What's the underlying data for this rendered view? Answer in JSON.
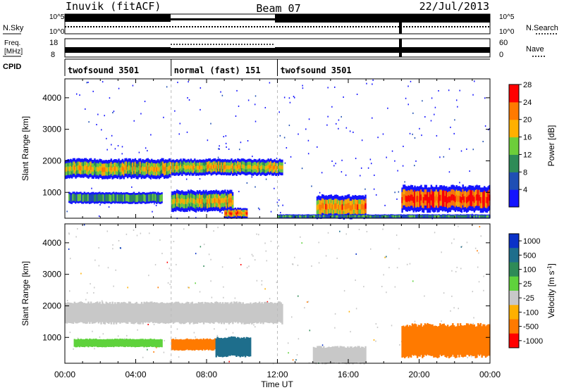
{
  "header": {
    "station": "Inuvik (fitACF)",
    "beam": "Beam 07",
    "date": "22/Jul/2013"
  },
  "summary": {
    "nsky_label": "N.Sky",
    "nsearch_label": "N.Search",
    "freq_label_1": "Freq.",
    "freq_label_2": "[MHz]",
    "nave_label": "Nave",
    "cpid_label": "CPID",
    "left_top_tick": "10^5",
    "left_bot_tick": "10^0",
    "right_top_tick": "10^5",
    "right_bot_tick": "10^0",
    "freq_top_tick": "18",
    "freq_bot_tick": "8",
    "nave_top_tick": "60",
    "nave_bot_tick": "0"
  },
  "cpid_segments": [
    {
      "label": "twofsound 3501",
      "start_hour": 0,
      "end_hour": 6
    },
    {
      "label": "normal (fast) 151",
      "start_hour": 6,
      "end_hour": 12
    },
    {
      "label": "twofsound 3501",
      "start_hour": 12,
      "end_hour": 24
    }
  ],
  "chart_data": [
    {
      "type": "heatmap",
      "parameter": "power",
      "xlabel": "",
      "ylabel": "Slant Range [km]",
      "xlim_hours": [
        0,
        24
      ],
      "ylim_km": [
        180,
        4600
      ],
      "yticks": [
        "1000",
        "2000",
        "3000",
        "4000"
      ],
      "colorbar_label": "Power [dB]",
      "colorbar_ticks": [
        "4",
        "8",
        "12",
        "16",
        "20",
        "24",
        "28"
      ],
      "colorbar_colors": [
        "#1414ff",
        "#1f4fb4",
        "#2e8b57",
        "#6dce3a",
        "#ffb000",
        "#ff7a00",
        "#ff0000"
      ],
      "bands": [
        {
          "start": 0.0,
          "end": 6.0,
          "min_km": 1450,
          "max_km": 2050,
          "level": 3
        },
        {
          "start": 6.0,
          "end": 12.3,
          "min_km": 1550,
          "max_km": 2050,
          "level": 3
        },
        {
          "start": 0.2,
          "end": 5.5,
          "min_km": 650,
          "max_km": 1000,
          "level": 2
        },
        {
          "start": 6.0,
          "end": 9.5,
          "min_km": 400,
          "max_km": 1050,
          "level": 3
        },
        {
          "start": 9.0,
          "end": 10.3,
          "min_km": 180,
          "max_km": 500,
          "level": 4
        },
        {
          "start": 14.2,
          "end": 17.0,
          "min_km": 180,
          "max_km": 900,
          "level": 4
        },
        {
          "start": 19.0,
          "end": 24.0,
          "min_km": 400,
          "max_km": 1200,
          "level": 5
        },
        {
          "start": 12.0,
          "end": 24.0,
          "min_km": 180,
          "max_km": 300,
          "level": 2
        }
      ]
    },
    {
      "type": "heatmap",
      "parameter": "velocity",
      "xlabel": "Time UT",
      "ylabel": "Slant Range [km]",
      "xlim_hours": [
        0,
        24
      ],
      "ylim_km": [
        180,
        4600
      ],
      "xticks": [
        "00:00",
        "04:00",
        "08:00",
        "12:00",
        "16:00",
        "20:00",
        "00:00"
      ],
      "yticks": [
        "1000",
        "2000",
        "3000",
        "4000"
      ],
      "colorbar_label": "Velocity [m s^-1]",
      "colorbar_ticks": [
        "1000",
        "500",
        "100",
        "25",
        "-25",
        "-100",
        "-500",
        "-1000"
      ],
      "colorbar_colors": [
        "#0a32c8",
        "#1e6e8c",
        "#2e8b57",
        "#5fd23c",
        "#c8c8c8",
        "#ffb000",
        "#ff7a00",
        "#ff0000"
      ],
      "bands": [
        {
          "start": 0.0,
          "end": 12.3,
          "min_km": 1450,
          "max_km": 2100,
          "value_ms": 0
        },
        {
          "start": 0.5,
          "end": 5.5,
          "min_km": 700,
          "max_km": 950,
          "value_ms": 50
        },
        {
          "start": 6.0,
          "end": 8.5,
          "min_km": 600,
          "max_km": 950,
          "value_ms": -150
        },
        {
          "start": 8.5,
          "end": 10.5,
          "min_km": 400,
          "max_km": 1000,
          "value_ms": 300
        },
        {
          "start": 19.0,
          "end": 24.0,
          "min_km": 400,
          "max_km": 1400,
          "value_ms": -300
        },
        {
          "start": 14.0,
          "end": 17.0,
          "min_km": 180,
          "max_km": 700,
          "value_ms": 0
        }
      ]
    }
  ]
}
